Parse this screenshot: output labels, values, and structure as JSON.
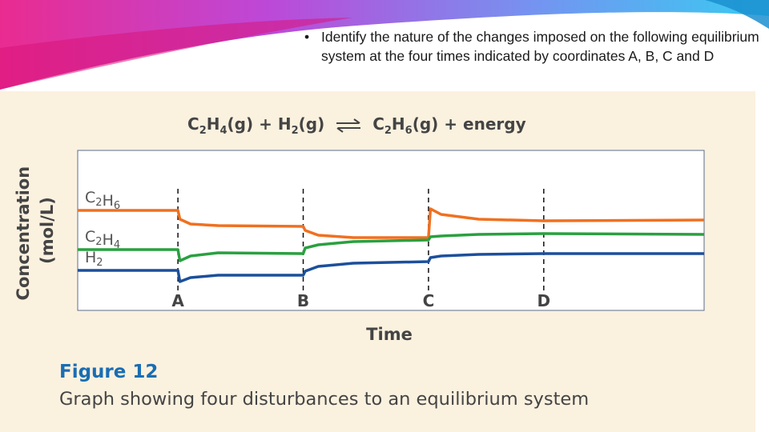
{
  "slide": {
    "bullet": "Identify the nature of the changes imposed on the following equilibrium system at the four times indicated by coordinates A, B, C and D"
  },
  "equation": {
    "reactant1": "C2H4(g)",
    "plus1": "+",
    "reactant2": "H2(g)",
    "product": "C2H6(g)",
    "plus2": "+",
    "energy": "energy"
  },
  "figure": {
    "title": "Figure 12",
    "caption": "Graph showing four disturbances to an equilibrium system"
  },
  "colors": {
    "c2h6": "#f07020",
    "c2h4": "#2aa040",
    "h2": "#1c4f9c",
    "panel": "#fbf1df",
    "figure_title": "#1a6db3"
  },
  "chart_data": {
    "type": "line",
    "xlabel": "Time",
    "ylabel": "Concentration (mol/L)",
    "x_ticks": [
      {
        "label": "A",
        "t": 2.0
      },
      {
        "label": "B",
        "t": 4.5
      },
      {
        "label": "C",
        "t": 7.0
      },
      {
        "label": "D",
        "t": 9.3
      }
    ],
    "xlim": [
      0,
      12.5
    ],
    "ylim": [
      0,
      10
    ],
    "grid": false,
    "legend": "left, inline labels",
    "series": [
      {
        "name": "C2H6",
        "color_key": "c2h6",
        "points": [
          [
            0,
            6.25
          ],
          [
            2,
            6.25
          ],
          [
            2.04,
            5.7
          ],
          [
            2.25,
            5.4
          ],
          [
            2.8,
            5.3
          ],
          [
            4.5,
            5.25
          ],
          [
            4.54,
            5.0
          ],
          [
            4.8,
            4.7
          ],
          [
            5.5,
            4.55
          ],
          [
            7,
            4.55
          ],
          [
            7.04,
            6.35
          ],
          [
            7.25,
            6.0
          ],
          [
            8,
            5.7
          ],
          [
            9.3,
            5.6
          ],
          [
            12.5,
            5.65
          ]
        ]
      },
      {
        "name": "C2H4",
        "color_key": "c2h4",
        "points": [
          [
            0,
            3.8
          ],
          [
            2,
            3.8
          ],
          [
            2.04,
            3.1
          ],
          [
            2.25,
            3.4
          ],
          [
            2.8,
            3.6
          ],
          [
            4.5,
            3.55
          ],
          [
            4.54,
            3.9
          ],
          [
            4.8,
            4.1
          ],
          [
            5.5,
            4.3
          ],
          [
            7,
            4.4
          ],
          [
            7.04,
            4.6
          ],
          [
            7.25,
            4.65
          ],
          [
            8,
            4.75
          ],
          [
            9.3,
            4.8
          ],
          [
            12.5,
            4.75
          ]
        ]
      },
      {
        "name": "H2",
        "color_key": "h2",
        "points": [
          [
            0,
            2.5
          ],
          [
            2,
            2.5
          ],
          [
            2.04,
            1.8
          ],
          [
            2.25,
            2.05
          ],
          [
            2.8,
            2.2
          ],
          [
            4.5,
            2.2
          ],
          [
            4.54,
            2.45
          ],
          [
            4.8,
            2.75
          ],
          [
            5.5,
            2.95
          ],
          [
            7,
            3.05
          ],
          [
            7.04,
            3.3
          ],
          [
            7.25,
            3.4
          ],
          [
            8,
            3.5
          ],
          [
            9.3,
            3.55
          ],
          [
            12.5,
            3.55
          ]
        ]
      }
    ]
  }
}
